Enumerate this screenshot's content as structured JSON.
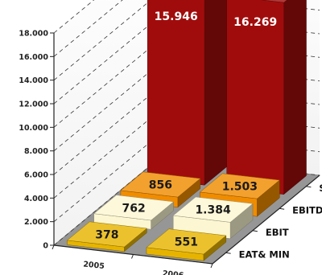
{
  "chart_data": {
    "type": "bar",
    "categories": [
      "2005",
      "2006"
    ],
    "series": [
      {
        "name": "SALES",
        "values": [
          15946,
          16269
        ],
        "labels": [
          "15.946",
          "16.269"
        ],
        "color": "#a00c0c"
      },
      {
        "name": "EBITDA",
        "values": [
          856,
          1503
        ],
        "labels": [
          "856",
          "1.503"
        ],
        "color": "#f08c00"
      },
      {
        "name": "EBIT",
        "values": [
          762,
          1384
        ],
        "labels": [
          "762",
          "1.384"
        ],
        "color": "#fcf7d2"
      },
      {
        "name": "EAT& MIN",
        "values": [
          378,
          551
        ],
        "labels": [
          "378",
          "551"
        ],
        "color": "#e6b400"
      }
    ],
    "ylim": [
      0,
      18000
    ],
    "yticks": [
      "0",
      "2.000",
      "4.000",
      "6.000",
      "8.000",
      "10.000",
      "12.000",
      "14.000",
      "16.000",
      "18.000"
    ],
    "grid": true,
    "legend": "right"
  }
}
